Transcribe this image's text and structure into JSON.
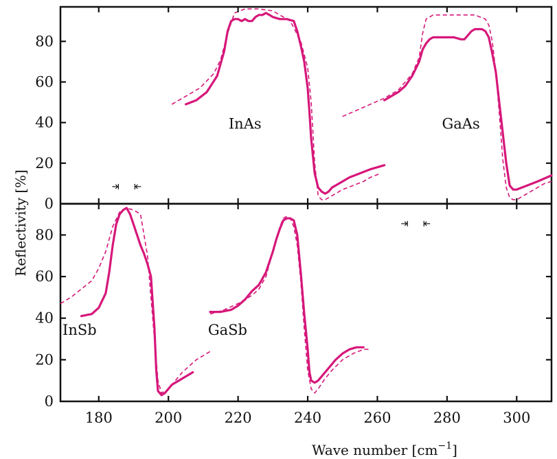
{
  "chart_data": {
    "type": "line",
    "xlabel": "Wave number [cm",
    "xlabel_sup": "−1",
    "xlabel_close": "]",
    "ylabel": "Reflectivity [%]",
    "xlim": [
      169,
      310
    ],
    "xticks": [
      180,
      200,
      220,
      240,
      260,
      280,
      300
    ],
    "yticks": [
      0,
      20,
      40,
      60,
      80
    ],
    "grid": false,
    "panels": [
      {
        "name": "top",
        "ylim": [
          0,
          97
        ],
        "annotations": [
          {
            "text": "InAs",
            "x": 222,
            "y": 37
          },
          {
            "text": "GaAs",
            "x": 284,
            "y": 37
          }
        ],
        "resolution_marker": {
          "x": 188
        },
        "series": [
          {
            "compound": "InAs",
            "style": "solid",
            "x": [
              205,
              208,
              211,
              214,
              216,
              217,
              218,
              219,
              220,
              221,
              222,
              223,
              224,
              225,
              226,
              227,
              228,
              229,
              230,
              232,
              234,
              236,
              237,
              238,
              239,
              240,
              240.5,
              241,
              242,
              243,
              244,
              245,
              246,
              247,
              248,
              250,
              252,
              255,
              258,
              262
            ],
            "y": [
              49,
              51,
              55,
              63,
              75,
              85,
              90,
              91,
              91,
              90,
              91,
              90,
              90,
              92,
              93,
              93,
              94,
              93,
              92,
              91,
              91,
              90,
              85,
              78,
              70,
              57,
              45,
              32,
              15,
              8,
              6,
              5,
              6,
              8,
              9,
              11,
              13,
              15,
              17,
              19
            ]
          },
          {
            "compound": "InAs",
            "style": "dashed",
            "x": [
              201,
              205,
              209,
              213,
              215,
              217,
              219,
              222,
              226,
              230,
              235,
              238,
              240,
              241,
              242,
              243,
              244,
              245,
              246,
              248,
              250,
              253,
              256,
              258,
              261
            ],
            "y": [
              49,
              53,
              57,
              64,
              71,
              84,
              94,
              96,
              96,
              95,
              90,
              80,
              67,
              50,
              20,
              4,
              2,
              2,
              3,
              5,
              7,
              9,
              11,
              13,
              15
            ]
          },
          {
            "compound": "GaAs",
            "style": "solid",
            "x": [
              262,
              266,
              268,
              270,
              272,
              273,
              274,
              275,
              276,
              278,
              280,
              282,
              284,
              285,
              286,
              287,
              288,
              289,
              290,
              291,
              292,
              293,
              294,
              295,
              296,
              297,
              298,
              299,
              300,
              303,
              306,
              310
            ],
            "y": [
              51,
              55,
              58,
              63,
              70,
              76,
              79,
              81,
              82,
              82,
              82,
              82,
              81,
              81,
              83,
              85,
              86,
              86,
              86,
              85,
              82,
              74,
              65,
              50,
              35,
              20,
              9,
              7,
              7,
              9,
              11,
              14
            ]
          },
          {
            "compound": "GaAs",
            "style": "dashed",
            "x": [
              250,
              254,
              258,
              262,
              266,
              270,
              272,
              273,
              274,
              276,
              280,
              284,
              288,
              291,
              292,
              293,
              294,
              295,
              296,
              297,
              298,
              299,
              300,
              302,
              305,
              308,
              310
            ],
            "y": [
              43,
              46,
              49,
              52,
              56,
              64,
              72,
              84,
              91,
              93,
              93,
              93,
              93,
              91,
              88,
              80,
              65,
              45,
              22,
              8,
              3,
              2,
              2,
              4,
              7,
              10,
              11
            ]
          }
        ]
      },
      {
        "name": "bottom",
        "ylim": [
          0,
          95
        ],
        "annotations": [
          {
            "text": "InSb",
            "x": 174.5,
            "y": 32
          },
          {
            "text": "GaSb",
            "x": 217,
            "y": 32
          }
        ],
        "resolution_marker": {
          "x": 271
        },
        "series": [
          {
            "compound": "InSb",
            "style": "solid",
            "x": [
              175,
              178,
              180,
              182,
              183,
              184,
              185,
              186,
              187,
              188,
              189,
              190,
              191,
              192,
              193,
              194,
              195,
              196,
              196.5,
              197,
              198,
              199,
              201,
              203,
              205,
              207
            ],
            "y": [
              41,
              42,
              45,
              52,
              62,
              75,
              85,
              90,
              92,
              93,
              90,
              85,
              80,
              75,
              71,
              66,
              60,
              35,
              15,
              5,
              3,
              4,
              8,
              10,
              12,
              14
            ]
          },
          {
            "compound": "InSb",
            "style": "dashed",
            "x": [
              169,
              172,
              175,
              178,
              180,
              182,
              184,
              186,
              188,
              190,
              192,
              193,
              194,
              195,
              196,
              197,
              198,
              200,
              202,
              204,
              206,
              208,
              210,
              212
            ],
            "y": [
              47,
              50,
              54,
              58,
              64,
              72,
              84,
              91,
              93,
              92,
              90,
              80,
              70,
              50,
              30,
              10,
              4,
              6,
              10,
              14,
              17,
              20,
              22,
              24
            ]
          },
          {
            "compound": "GaSb",
            "style": "solid",
            "x": [
              212,
              215,
              218,
              220,
              222,
              224,
              226,
              228,
              230,
              231,
              232,
              233,
              234,
              235,
              236,
              237,
              238,
              239,
              240,
              240.5,
              241,
              242,
              243,
              244,
              246,
              248,
              250,
              252,
              254,
              256
            ],
            "y": [
              43,
              43,
              44,
              46,
              49,
              53,
              56,
              62,
              72,
              78,
              83,
              87,
              88,
              88,
              87,
              80,
              62,
              42,
              25,
              14,
              10,
              9,
              10,
              12,
              16,
              20,
              23,
              25,
              26,
              26
            ]
          },
          {
            "compound": "GaSb",
            "style": "dashed",
            "x": [
              212,
              216,
              220,
              224,
              226,
              228,
              230,
              232,
              233,
              234,
              235,
              236,
              237,
              238,
              239,
              240,
              241,
              242,
              243,
              245,
              247,
              250,
              253,
              256,
              258
            ],
            "y": [
              42,
              44,
              47,
              51,
              54,
              60,
              72,
              84,
              88,
              89,
              88,
              84,
              75,
              58,
              35,
              15,
              6,
              4,
              6,
              11,
              15,
              20,
              23,
              25,
              25
            ]
          }
        ]
      }
    ]
  }
}
